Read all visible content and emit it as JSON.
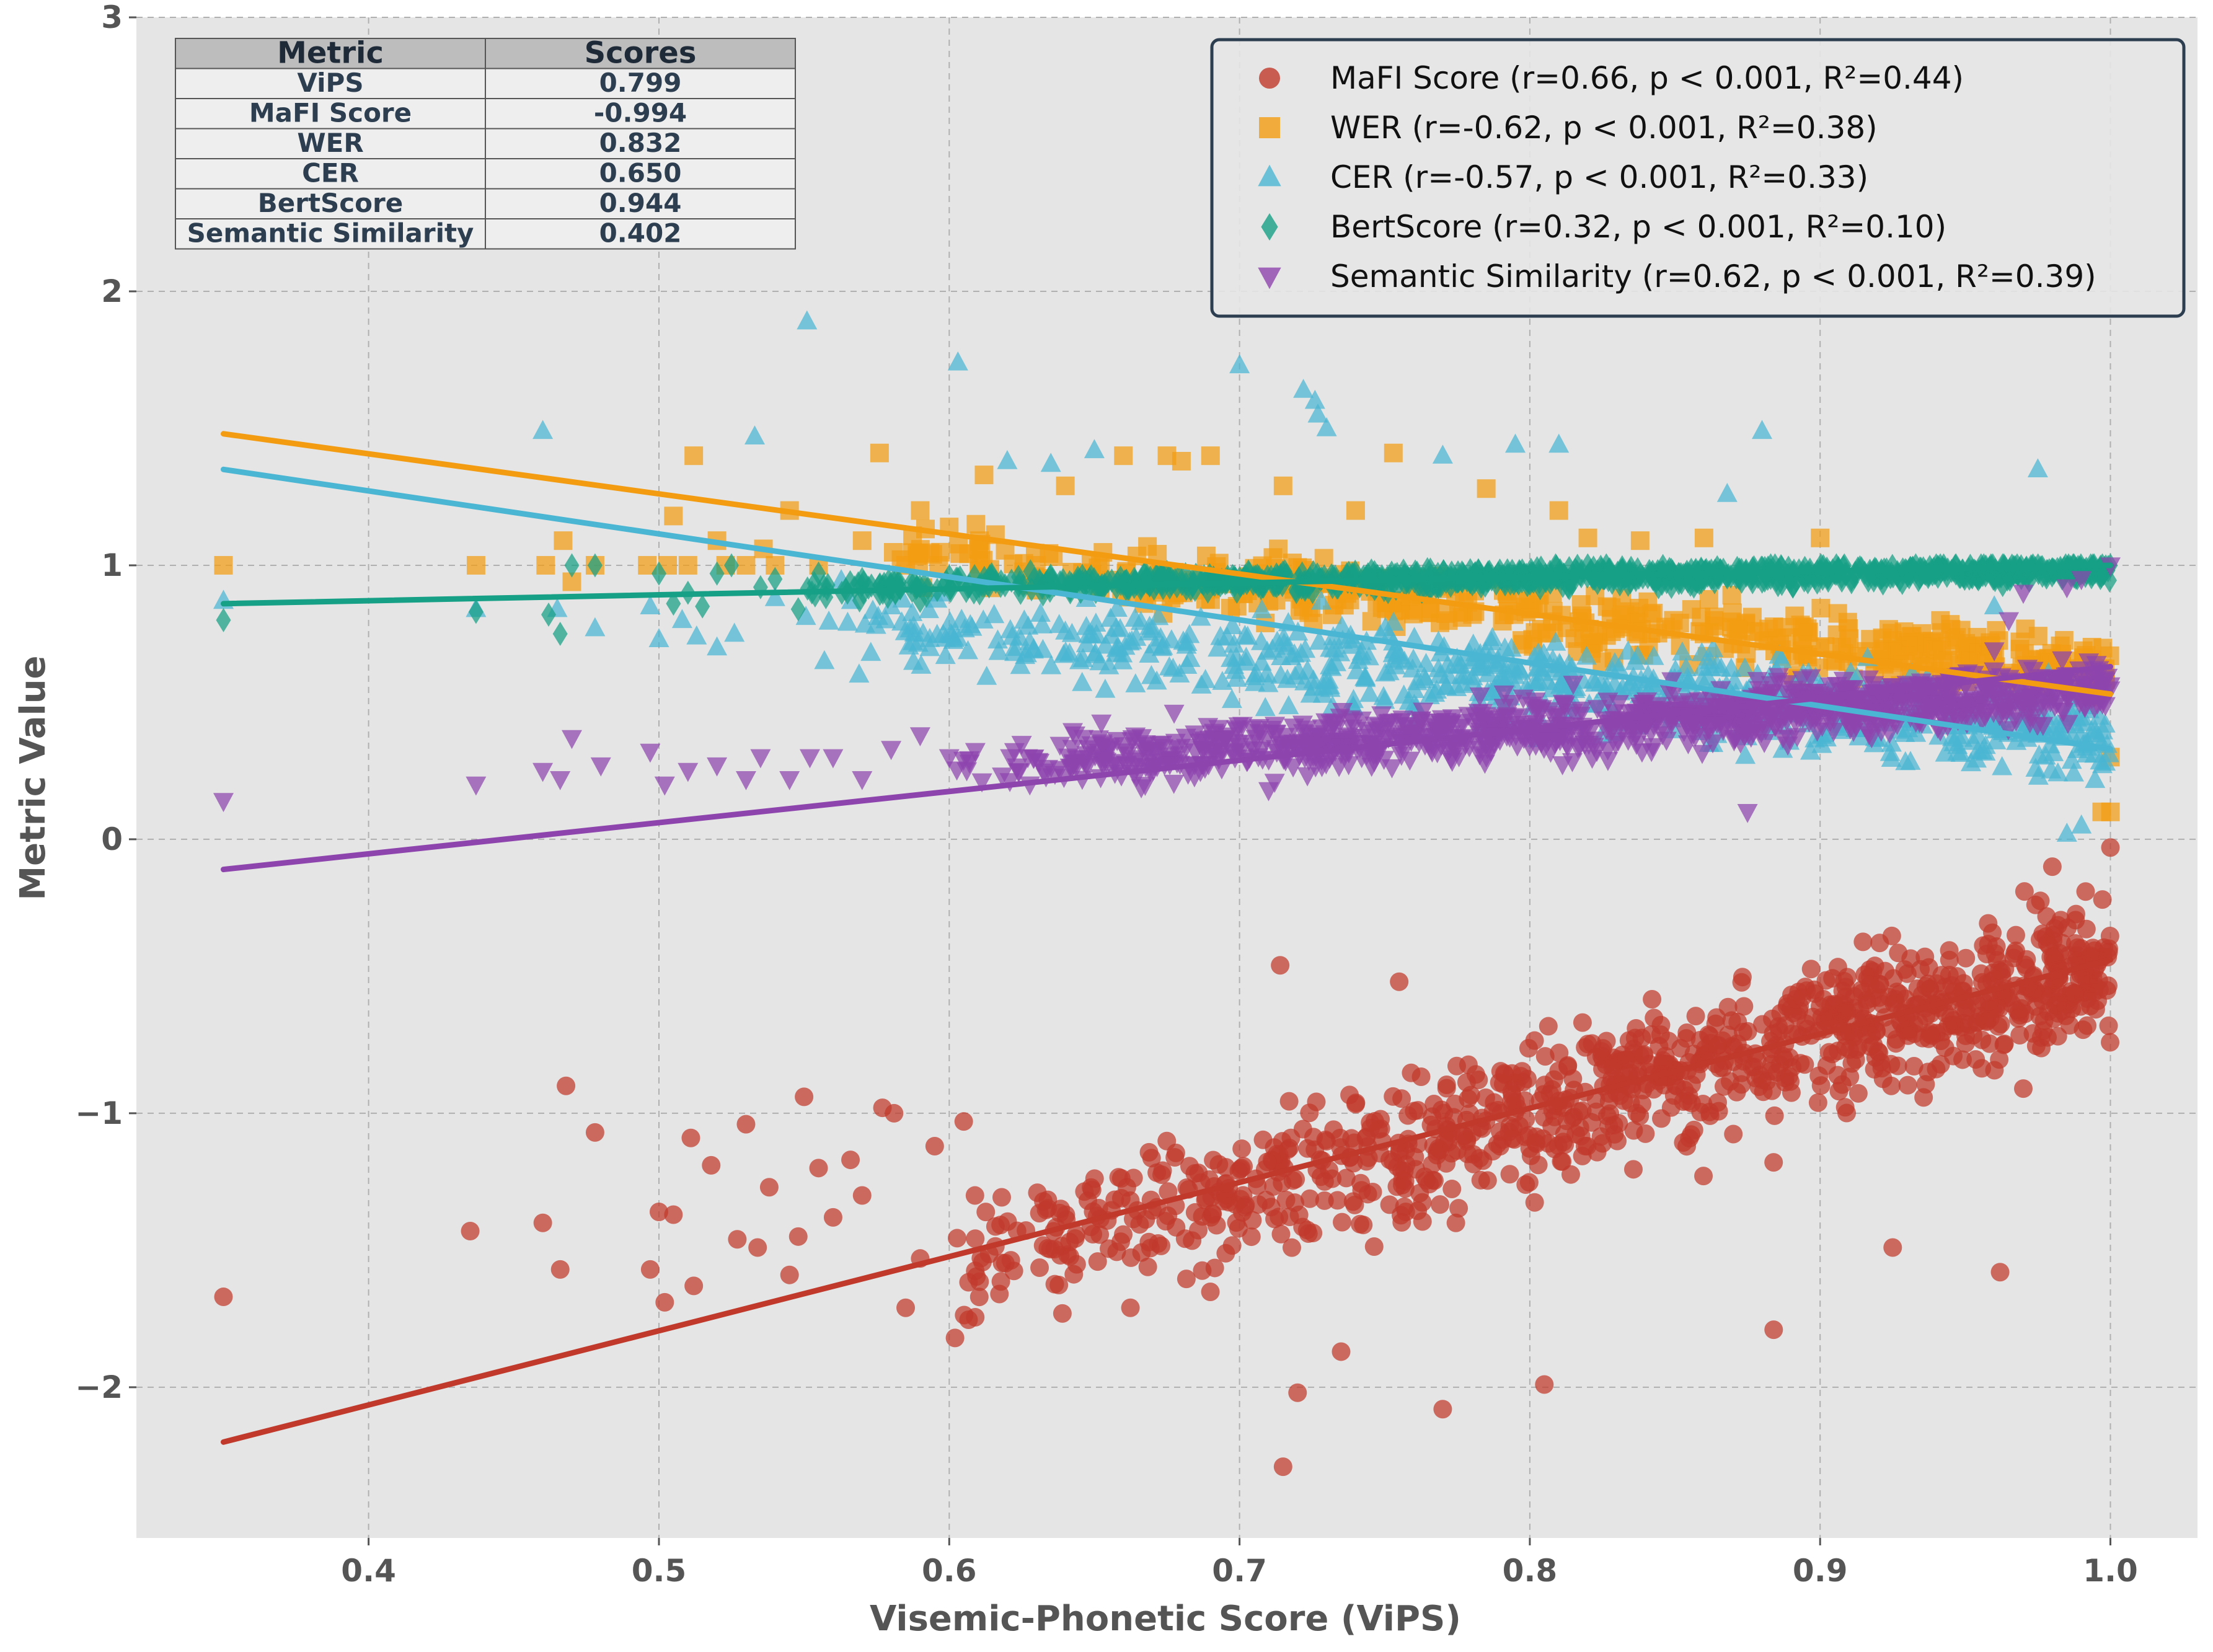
{
  "chart_data": {
    "type": "scatter",
    "xlabel": "Visemic-Phonetic Score (ViPS)",
    "ylabel": "Metric Value",
    "xlim": [
      0.32,
      1.03
    ],
    "ylim": [
      -2.55,
      3.0
    ],
    "x_ticks": [
      0.4,
      0.5,
      0.6,
      0.7,
      0.8,
      0.9,
      1.0
    ],
    "x_tick_labels": [
      "0.4",
      "0.5",
      "0.6",
      "0.7",
      "0.8",
      "0.9",
      "1.0"
    ],
    "y_ticks": [
      -2,
      -1,
      0,
      1,
      2,
      3
    ],
    "y_tick_labels": [
      "−2",
      "−1",
      "0",
      "1",
      "2",
      "3"
    ],
    "grid": true,
    "legend_position": "top-right",
    "series": [
      {
        "name": "MaFI Score (r=0.66, p < 0.001, R²=0.44)",
        "marker": "circle",
        "color": "#c0392b",
        "fit_line": {
          "x": [
            0.35,
            1.0
          ],
          "y": [
            -2.2,
            -0.44
          ]
        },
        "cloud": {
          "x_range": [
            0.6,
            1.0
          ],
          "trend": [
            -1.55,
            -0.45
          ],
          "spread": 0.33
        },
        "points": [
          [
            0.35,
            -1.67
          ],
          [
            0.435,
            -1.43
          ],
          [
            0.46,
            -1.4
          ],
          [
            0.468,
            -0.9
          ],
          [
            0.466,
            -1.57
          ],
          [
            0.478,
            -1.07
          ],
          [
            0.497,
            -1.57
          ],
          [
            0.5,
            -1.36
          ],
          [
            0.502,
            -1.69
          ],
          [
            0.505,
            -1.37
          ],
          [
            0.511,
            -1.09
          ],
          [
            0.512,
            -1.63
          ],
          [
            0.518,
            -1.19
          ],
          [
            0.527,
            -1.46
          ],
          [
            0.53,
            -1.04
          ],
          [
            0.534,
            -1.49
          ],
          [
            0.538,
            -1.27
          ],
          [
            0.545,
            -1.59
          ],
          [
            0.548,
            -1.45
          ],
          [
            0.55,
            -0.94
          ],
          [
            0.555,
            -1.2
          ],
          [
            0.56,
            -1.38
          ],
          [
            0.566,
            -1.17
          ],
          [
            0.57,
            -1.3
          ],
          [
            0.577,
            -0.98
          ],
          [
            0.581,
            -1.0
          ],
          [
            0.585,
            -1.71
          ],
          [
            0.59,
            -1.53
          ],
          [
            0.595,
            -1.12
          ],
          [
            0.602,
            -1.82
          ],
          [
            0.605,
            -1.03
          ],
          [
            0.715,
            -2.29
          ],
          [
            0.72,
            -2.02
          ],
          [
            0.735,
            -1.87
          ],
          [
            0.77,
            -2.08
          ],
          [
            0.805,
            -1.99
          ],
          [
            0.714,
            -0.46
          ],
          [
            0.884,
            -1.79
          ],
          [
            0.962,
            -1.58
          ],
          [
            0.97,
            -0.91
          ],
          [
            0.992,
            -0.68
          ],
          [
            0.98,
            -0.1
          ],
          [
            1.0,
            -0.03
          ],
          [
            0.925,
            -1.49
          ],
          [
            0.755,
            -0.52
          ]
        ]
      },
      {
        "name": "WER (r=-0.62, p < 0.001, R²=0.38)",
        "marker": "square",
        "color": "#f39c12",
        "fit_line": {
          "x": [
            0.35,
            1.0
          ],
          "y": [
            1.48,
            0.53
          ]
        },
        "cloud": {
          "x_range": [
            0.58,
            1.0
          ],
          "trend": [
            1.05,
            0.62
          ],
          "spread": 0.15
        },
        "points": [
          [
            0.35,
            1.0
          ],
          [
            0.437,
            1.0
          ],
          [
            0.461,
            1.0
          ],
          [
            0.467,
            1.09
          ],
          [
            0.47,
            0.94
          ],
          [
            0.478,
            1.0
          ],
          [
            0.496,
            1.0
          ],
          [
            0.503,
            1.0
          ],
          [
            0.505,
            1.18
          ],
          [
            0.51,
            1.0
          ],
          [
            0.512,
            1.4
          ],
          [
            0.52,
            1.09
          ],
          [
            0.523,
            1.0
          ],
          [
            0.53,
            1.0
          ],
          [
            0.536,
            1.06
          ],
          [
            0.54,
            1.0
          ],
          [
            0.545,
            1.2
          ],
          [
            0.555,
            1.0
          ],
          [
            0.57,
            1.09
          ],
          [
            0.576,
            1.41
          ],
          [
            0.585,
            1.0
          ],
          [
            0.59,
            1.2
          ],
          [
            0.6,
            1.14
          ],
          [
            0.61,
            1.06
          ],
          [
            0.612,
            1.33
          ],
          [
            0.63,
            1.0
          ],
          [
            0.64,
            1.29
          ],
          [
            0.66,
            1.4
          ],
          [
            0.675,
            1.4
          ],
          [
            0.68,
            1.38
          ],
          [
            0.69,
            1.4
          ],
          [
            0.715,
            1.29
          ],
          [
            0.74,
            1.2
          ],
          [
            0.753,
            1.41
          ],
          [
            0.785,
            1.28
          ],
          [
            0.81,
            1.2
          ],
          [
            0.82,
            1.1
          ],
          [
            0.838,
            1.09
          ],
          [
            0.86,
            1.1
          ],
          [
            0.9,
            1.1
          ],
          [
            1.0,
            0.3
          ],
          [
            1.0,
            0.1
          ],
          [
            0.997,
            0.1
          ]
        ]
      },
      {
        "name": "CER (r=-0.57, p < 0.001, R²=0.33)",
        "marker": "triangle-up",
        "color": "#4ab6d3",
        "fit_line": {
          "x": [
            0.35,
            1.0
          ],
          "y": [
            1.35,
            0.33
          ]
        },
        "cloud": {
          "x_range": [
            0.55,
            1.0
          ],
          "trend": [
            0.82,
            0.38
          ],
          "spread": 0.2
        },
        "points": [
          [
            0.35,
            0.87
          ],
          [
            0.437,
            0.84
          ],
          [
            0.46,
            1.49
          ],
          [
            0.465,
            0.84
          ],
          [
            0.478,
            0.77
          ],
          [
            0.497,
            0.85
          ],
          [
            0.5,
            0.73
          ],
          [
            0.508,
            0.8
          ],
          [
            0.513,
            0.74
          ],
          [
            0.52,
            0.7
          ],
          [
            0.526,
            0.75
          ],
          [
            0.533,
            1.47
          ],
          [
            0.54,
            0.88
          ],
          [
            0.551,
            1.89
          ],
          [
            0.557,
            0.65
          ],
          [
            0.565,
            0.79
          ],
          [
            0.573,
            0.68
          ],
          [
            0.58,
            0.85
          ],
          [
            0.591,
            0.75
          ],
          [
            0.603,
            1.74
          ],
          [
            0.62,
            1.38
          ],
          [
            0.635,
            1.37
          ],
          [
            0.65,
            1.42
          ],
          [
            0.7,
            1.73
          ],
          [
            0.722,
            1.64
          ],
          [
            0.726,
            1.6
          ],
          [
            0.727,
            1.55
          ],
          [
            0.73,
            1.5
          ],
          [
            0.77,
            1.4
          ],
          [
            0.795,
            1.44
          ],
          [
            0.81,
            1.44
          ],
          [
            0.868,
            1.26
          ],
          [
            0.88,
            1.49
          ],
          [
            0.975,
            1.35
          ],
          [
            0.96,
            0.85
          ],
          [
            0.985,
            0.02
          ],
          [
            0.99,
            0.05
          ]
        ]
      },
      {
        "name": "BertScore (r=0.32, p < 0.001, R²=0.10)",
        "marker": "diamond",
        "color": "#16a085",
        "fit_line": {
          "x": [
            0.35,
            1.0
          ],
          "y": [
            0.86,
            1.0
          ]
        },
        "cloud": {
          "x_range": [
            0.55,
            1.0
          ],
          "trend": [
            0.92,
            0.985
          ],
          "spread": 0.045
        },
        "points": [
          [
            0.35,
            0.8
          ],
          [
            0.437,
            0.83
          ],
          [
            0.462,
            0.82
          ],
          [
            0.466,
            0.75
          ],
          [
            0.47,
            1.0
          ],
          [
            0.478,
            1.0
          ],
          [
            0.5,
            0.97
          ],
          [
            0.505,
            0.86
          ],
          [
            0.51,
            0.9
          ],
          [
            0.515,
            0.85
          ],
          [
            0.52,
            0.97
          ],
          [
            0.525,
            1.0
          ],
          [
            0.535,
            0.92
          ],
          [
            0.54,
            0.95
          ],
          [
            0.548,
            0.84
          ],
          [
            0.555,
            0.97
          ],
          [
            0.563,
            0.9
          ],
          [
            0.57,
            0.95
          ],
          [
            0.58,
            0.92
          ],
          [
            0.59,
            0.87
          ],
          [
            0.6,
            0.96
          ],
          [
            1.0,
            1.0
          ],
          [
            0.998,
            0.99
          ]
        ]
      },
      {
        "name": "Semantic Similarity (r=0.62, p < 0.001, R²=0.39)",
        "marker": "triangle-down",
        "color": "#8e44ad",
        "fit_line": {
          "x": [
            0.35,
            1.0
          ],
          "y": [
            -0.11,
            0.63
          ]
        },
        "cloud": {
          "x_range": [
            0.6,
            1.0
          ],
          "trend": [
            0.26,
            0.55
          ],
          "spread": 0.13
        },
        "points": [
          [
            0.35,
            0.14
          ],
          [
            0.437,
            0.2
          ],
          [
            0.46,
            0.25
          ],
          [
            0.466,
            0.22
          ],
          [
            0.47,
            0.37
          ],
          [
            0.48,
            0.27
          ],
          [
            0.497,
            0.32
          ],
          [
            0.502,
            0.2
          ],
          [
            0.51,
            0.25
          ],
          [
            0.52,
            0.27
          ],
          [
            0.53,
            0.22
          ],
          [
            0.535,
            0.3
          ],
          [
            0.545,
            0.22
          ],
          [
            0.552,
            0.3
          ],
          [
            0.56,
            0.3
          ],
          [
            0.57,
            0.22
          ],
          [
            0.58,
            0.33
          ],
          [
            0.59,
            0.38
          ],
          [
            0.6,
            0.3
          ],
          [
            0.607,
            0.28
          ],
          [
            0.965,
            0.8
          ],
          [
            0.97,
            0.9
          ],
          [
            0.985,
            0.92
          ],
          [
            0.99,
            0.95
          ],
          [
            1.0,
            1.0
          ],
          [
            0.96,
            0.69
          ],
          [
            0.875,
            0.1
          ]
        ]
      }
    ],
    "table": {
      "headers": [
        "Metric",
        "Scores"
      ],
      "rows": [
        [
          "ViPS",
          "0.799"
        ],
        [
          "MaFI Score",
          "-0.994"
        ],
        [
          "WER",
          "0.832"
        ],
        [
          "CER",
          "0.650"
        ],
        [
          "BertScore",
          "0.944"
        ],
        [
          "Semantic Similarity",
          "0.402"
        ]
      ]
    },
    "colors": {
      "plot_background": "#e5e5e5",
      "grid": "#b0b0b0",
      "legend_border": "#2c3e50",
      "table_header": "#bdbdbd",
      "table_row": "#eeeeee"
    }
  }
}
